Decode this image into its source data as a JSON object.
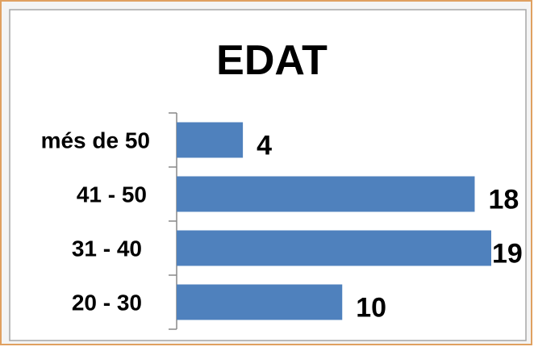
{
  "chart_data": {
    "type": "bar",
    "orientation": "horizontal",
    "title": "EDAT",
    "categories": [
      "més de 50",
      "41 - 50",
      "31 - 40",
      "20 - 30"
    ],
    "values": [
      4,
      18,
      19,
      10
    ],
    "color": "#4f81bd"
  }
}
